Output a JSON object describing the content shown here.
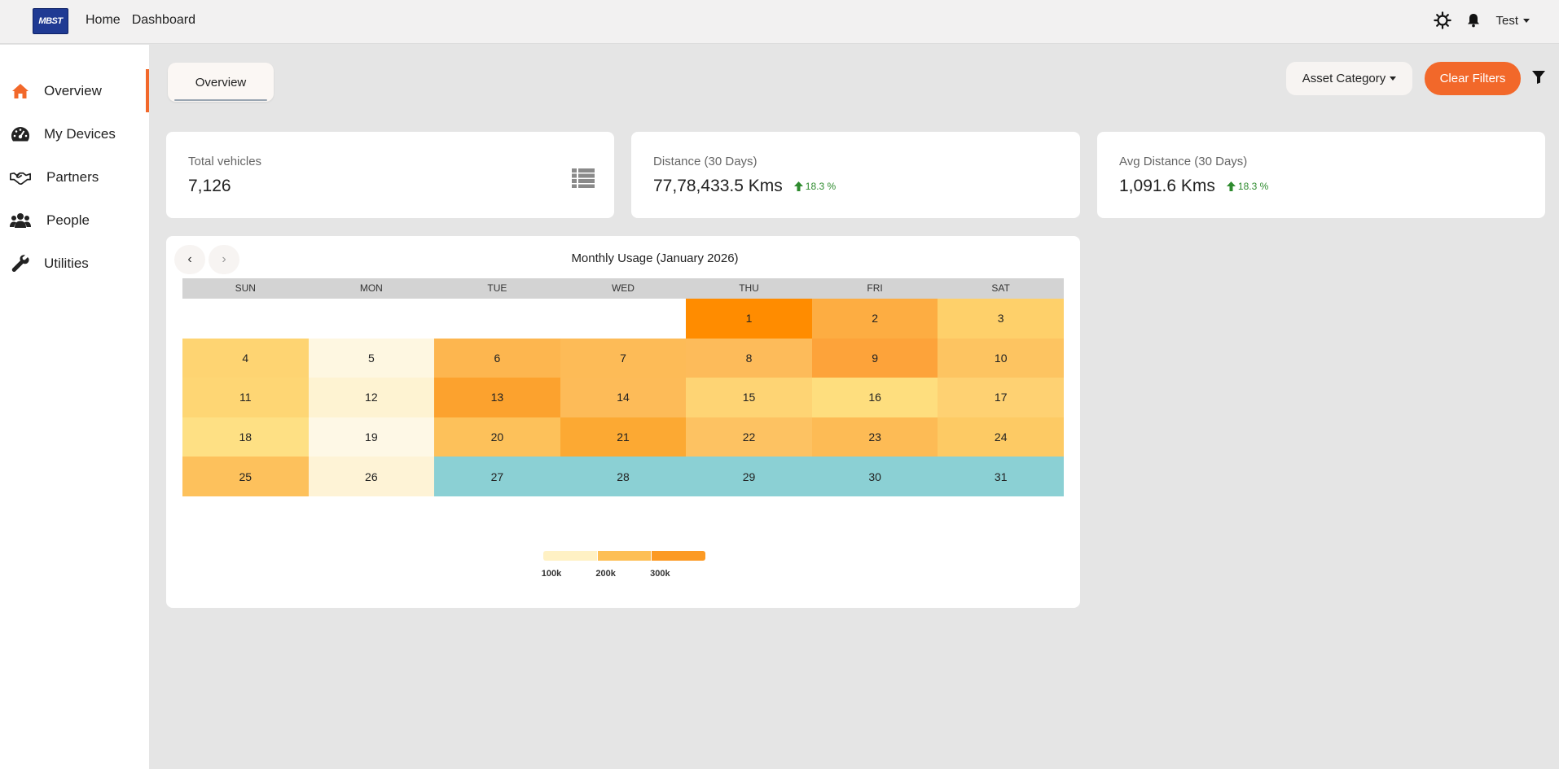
{
  "header": {
    "logo_text": "MBST",
    "nav": [
      "Home",
      "Dashboard"
    ],
    "user_name": "Test"
  },
  "sidebar": {
    "items": [
      {
        "label": "Overview",
        "icon": "home-icon",
        "active": true
      },
      {
        "label": "My Devices",
        "icon": "dashboard-gauge-icon",
        "active": false
      },
      {
        "label": "Partners",
        "icon": "handshake-icon",
        "active": false
      },
      {
        "label": "People",
        "icon": "users-icon",
        "active": false
      },
      {
        "label": "Utilities",
        "icon": "wrench-icon",
        "active": false
      }
    ]
  },
  "main": {
    "tab_label": "Overview",
    "asset_category_label": "Asset Category",
    "clear_filters_label": "Clear Filters"
  },
  "stats": [
    {
      "title": "Total vehicles",
      "value": "7,126",
      "trend": ""
    },
    {
      "title": "Distance (30 Days)",
      "value": "77,78,433.5 Kms",
      "trend": "18.3 %"
    },
    {
      "title": "Avg Distance (30 Days)",
      "value": "1,091.6 Kms",
      "trend": "18.3 %"
    }
  ],
  "calendar": {
    "title": "Monthly Usage (January 2026)",
    "weekdays": [
      "SUN",
      "MON",
      "TUE",
      "WED",
      "THU",
      "FRI",
      "SAT"
    ],
    "start_weekday": 4,
    "days": [
      {
        "day": "1",
        "color": "#ff8c00"
      },
      {
        "day": "2",
        "color": "#fdad42"
      },
      {
        "day": "3",
        "color": "#fed06a"
      },
      {
        "day": "4",
        "color": "#fed472"
      },
      {
        "day": "5",
        "color": "#fef7e1"
      },
      {
        "day": "6",
        "color": "#fdb64f"
      },
      {
        "day": "7",
        "color": "#fdbb57"
      },
      {
        "day": "8",
        "color": "#fdbb5a"
      },
      {
        "day": "9",
        "color": "#fda33a"
      },
      {
        "day": "10",
        "color": "#fdc461"
      },
      {
        "day": "11",
        "color": "#fed674"
      },
      {
        "day": "12",
        "color": "#fef3d2"
      },
      {
        "day": "13",
        "color": "#fca22e"
      },
      {
        "day": "14",
        "color": "#fdbb58"
      },
      {
        "day": "15",
        "color": "#fed474"
      },
      {
        "day": "16",
        "color": "#fede7e"
      },
      {
        "day": "17",
        "color": "#fed172"
      },
      {
        "day": "18",
        "color": "#fee084"
      },
      {
        "day": "19",
        "color": "#fef8e6"
      },
      {
        "day": "20",
        "color": "#fdc15a"
      },
      {
        "day": "21",
        "color": "#fca933"
      },
      {
        "day": "22",
        "color": "#fdc262"
      },
      {
        "day": "23",
        "color": "#fdbb55"
      },
      {
        "day": "24",
        "color": "#fdca64"
      },
      {
        "day": "25",
        "color": "#fdc15c"
      },
      {
        "day": "26",
        "color": "#fef3d6"
      },
      {
        "day": "27",
        "color": "#8bd0d4"
      },
      {
        "day": "28",
        "color": "#8bd0d4"
      },
      {
        "day": "29",
        "color": "#8bd0d4"
      },
      {
        "day": "30",
        "color": "#8bd0d4"
      },
      {
        "day": "31",
        "color": "#8bd0d4"
      }
    ],
    "legend": {
      "labels": [
        "100k",
        "200k",
        "300k"
      ],
      "colors": [
        "#fff1c4",
        "#fdbf55",
        "#fc9a24"
      ]
    }
  },
  "colors": {
    "accent": "#f2682a",
    "trend_up": "#2e8b2e"
  }
}
